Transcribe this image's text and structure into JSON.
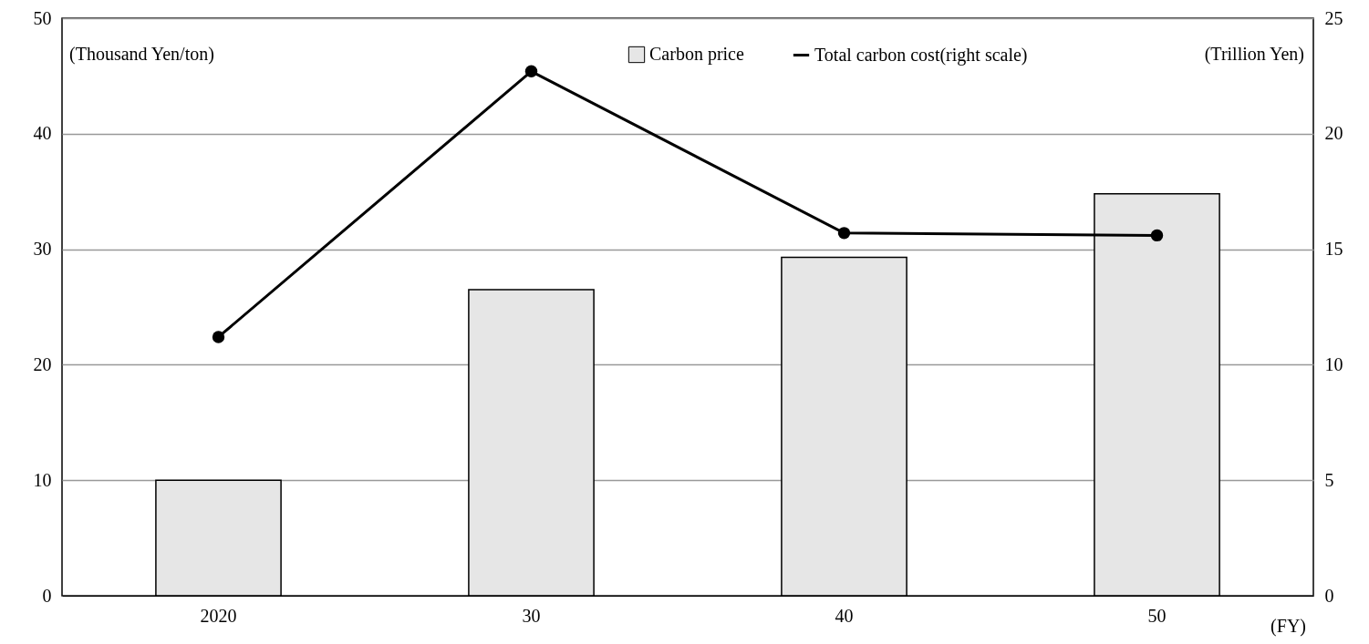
{
  "chart_data": {
    "type": "bar",
    "categories": [
      "2020",
      "30",
      "40",
      "50"
    ],
    "xlabel": "(FY)",
    "ylabel": "(Thousand Yen/ton)",
    "y2label": "(Trillion  Yen)",
    "series": [
      {
        "name": "Carbon price",
        "color": "#e6e6e6",
        "values": [
          10,
          26.5,
          29.3,
          34.8
        ]
      },
      {
        "name": "Total carbon cost(right scale)",
        "type": "line",
        "axis": "y2",
        "color": "#000000",
        "marker": "circle",
        "values": [
          11.2,
          22.7,
          15.7,
          15.6
        ]
      }
    ],
    "ylim": [
      0,
      50
    ],
    "yticks": [
      0,
      10,
      20,
      30,
      40,
      50
    ],
    "y2lim": [
      0,
      25
    ],
    "y2ticks": [
      0,
      5,
      10,
      15,
      20,
      25
    ],
    "grid": "y",
    "legend": "top"
  }
}
